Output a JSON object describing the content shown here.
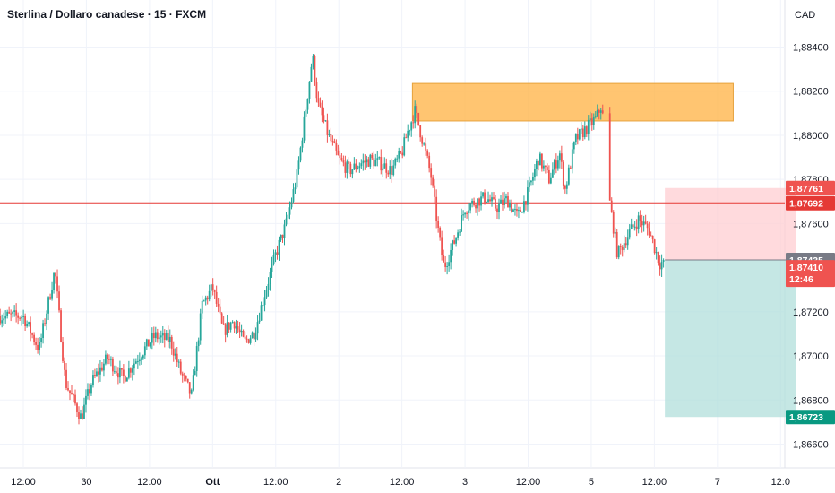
{
  "header": {
    "title": "Sterlina / Dollaro canadese · 15 · FXCM",
    "currency": "CAD"
  },
  "colors": {
    "up": "#26a69a",
    "down": "#ef5350",
    "zone": "#ffb74d",
    "level": "#e53935",
    "stop_fill": "#ffcdd2",
    "target_fill": "#b2dfdb",
    "current_badge": "#787b86",
    "target_badge": "#089981"
  },
  "chart_data": {
    "type": "candlestick",
    "title": "Sterlina / Dollaro canadese · 15 · FXCM",
    "y_ticks": [
      "1,88400",
      "1,88200",
      "1,88000",
      "1,87800",
      "1,87600",
      "1,87200",
      "1,87000",
      "1,86800",
      "1,86600"
    ],
    "y_tick_values": [
      1.884,
      1.882,
      1.88,
      1.878,
      1.876,
      1.872,
      1.87,
      1.868,
      1.866
    ],
    "ylim": [
      1.8654,
      1.8858
    ],
    "x_labels": [
      {
        "label": "12:00",
        "pos": 0.0
      },
      {
        "label": "30",
        "pos": 0.12
      },
      {
        "label": "12:00",
        "pos": 0.24
      },
      {
        "label": "Ott",
        "pos": 0.36,
        "bold": true
      },
      {
        "label": "12:00",
        "pos": 0.48
      },
      {
        "label": "2",
        "pos": 0.6
      },
      {
        "label": "12:00",
        "pos": 0.72
      },
      {
        "label": "3",
        "pos": 0.84
      },
      {
        "label": "12:00",
        "pos": 0.96
      },
      {
        "label": "5",
        "pos": 1.08
      },
      {
        "label": "12:00",
        "pos": 1.2
      },
      {
        "label": "7",
        "pos": 1.32
      },
      {
        "label": "12:0",
        "pos": 1.44
      }
    ],
    "resistance_zone": {
      "start": 0.74,
      "end": 1.35,
      "low": 1.88065,
      "high": 1.88235
    },
    "horizontal_level": 1.87692,
    "position": {
      "start": 1.22,
      "end": 1.47,
      "entry": 1.87435,
      "stop": 1.87761,
      "target": 1.86723
    },
    "price_labels": {
      "stop": "1,87761",
      "level": "1,87692",
      "current": "1,87435",
      "last": "1,87410",
      "countdown": "12:46",
      "target": "1,86723"
    },
    "series_anchors": [
      [
        0.0,
        1.8718
      ],
      [
        0.03,
        1.8703
      ],
      [
        0.06,
        1.8739
      ],
      [
        0.08,
        1.8688
      ],
      [
        0.11,
        1.8672
      ],
      [
        0.13,
        1.8688
      ],
      [
        0.16,
        1.8699
      ],
      [
        0.19,
        1.869
      ],
      [
        0.22,
        1.87
      ],
      [
        0.25,
        1.8709
      ],
      [
        0.28,
        1.8707
      ],
      [
        0.3,
        1.8692
      ],
      [
        0.32,
        1.8682
      ],
      [
        0.34,
        1.8723
      ],
      [
        0.36,
        1.8731
      ],
      [
        0.38,
        1.8711
      ],
      [
        0.4,
        1.8716
      ],
      [
        0.42,
        1.8706
      ],
      [
        0.44,
        1.8711
      ],
      [
        0.46,
        1.8729
      ],
      [
        0.48,
        1.8746
      ],
      [
        0.5,
        1.876
      ],
      [
        0.52,
        1.8781
      ],
      [
        0.535,
        1.8808
      ],
      [
        0.55,
        1.8836
      ],
      [
        0.56,
        1.8814
      ],
      [
        0.58,
        1.88
      ],
      [
        0.6,
        1.8789
      ],
      [
        0.62,
        1.8784
      ],
      [
        0.64,
        1.8787
      ],
      [
        0.66,
        1.8789
      ],
      [
        0.68,
        1.8787
      ],
      [
        0.7,
        1.8784
      ],
      [
        0.72,
        1.8792
      ],
      [
        0.73,
        1.8801
      ],
      [
        0.745,
        1.8811
      ],
      [
        0.76,
        1.8797
      ],
      [
        0.775,
        1.8782
      ],
      [
        0.79,
        1.8755
      ],
      [
        0.8,
        1.874
      ],
      [
        0.82,
        1.8752
      ],
      [
        0.84,
        1.8767
      ],
      [
        0.86,
        1.877
      ],
      [
        0.88,
        1.8772
      ],
      [
        0.9,
        1.8767
      ],
      [
        0.92,
        1.8771
      ],
      [
        0.94,
        1.8763
      ],
      [
        0.96,
        1.8774
      ],
      [
        0.98,
        1.879
      ],
      [
        1.0,
        1.878
      ],
      [
        1.02,
        1.8792
      ],
      [
        1.03,
        1.8775
      ],
      [
        1.05,
        1.8798
      ],
      [
        1.07,
        1.8803
      ],
      [
        1.09,
        1.8808
      ],
      [
        1.1,
        1.8814
      ],
      [
        1.115,
        1.877
      ],
      [
        1.13,
        1.8746
      ],
      [
        1.15,
        1.8755
      ],
      [
        1.17,
        1.8762
      ],
      [
        1.19,
        1.8757
      ],
      [
        1.21,
        1.8742
      ],
      [
        1.22,
        1.8743
      ]
    ]
  }
}
